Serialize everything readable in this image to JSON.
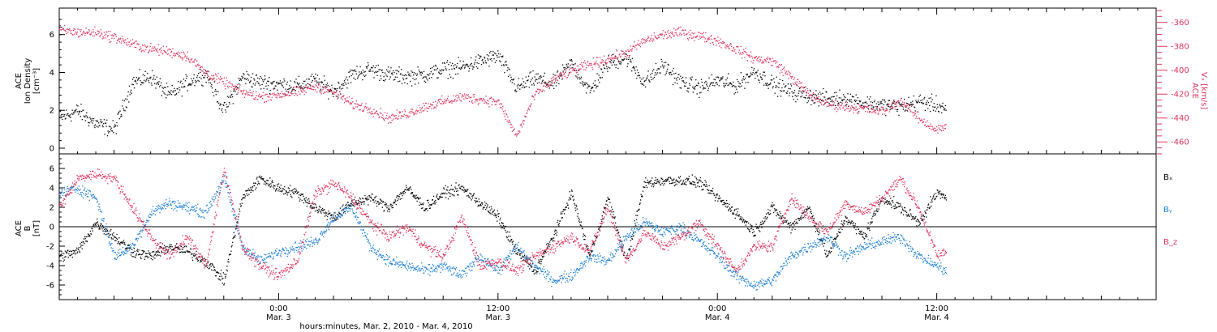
{
  "colors": {
    "black": "#000000",
    "red": "#e0355f",
    "blue": "#1f7fd4"
  },
  "xaxis": {
    "title": "hours:minutes, Mar. 2, 2010 - Mar. 4, 2010",
    "range_hours": [
      0,
      60
    ],
    "ticks": [
      {
        "hour": 12,
        "time": "0:00",
        "date": "Mar. 3"
      },
      {
        "hour": 24,
        "time": "12:00",
        "date": "Mar. 3"
      },
      {
        "hour": 36,
        "time": "0:00",
        "date": "Mar. 4"
      },
      {
        "hour": 48,
        "time": "12:00",
        "date": "Mar. 4"
      }
    ]
  },
  "chart_data": [
    {
      "type": "scatter",
      "panel": "top",
      "ylabel_left": {
        "line1": "ACE",
        "line2": "Ion Density",
        "line3": "[cm⁻³]"
      },
      "ylabel_right": {
        "line1": "ACE",
        "line2": "Vₓ [km/s]"
      },
      "ylim_left": [
        -0.3,
        7.4
      ],
      "yticks_left": [
        "0",
        "2",
        "4",
        "6"
      ],
      "ylim_right": [
        -470,
        -348
      ],
      "yticks_right": [
        "-360",
        "-380",
        "-400",
        "-420",
        "-440",
        "-460"
      ],
      "series": [
        {
          "axis": "left",
          "color": "black",
          "x": [
            0,
            1,
            2,
            3,
            4,
            5,
            6,
            7,
            8,
            9,
            10,
            11,
            12,
            13,
            14,
            15,
            16,
            17,
            18,
            19,
            20,
            21,
            22,
            23,
            24,
            25,
            26,
            27,
            28,
            29,
            30,
            31,
            32,
            33,
            34,
            35,
            36,
            37,
            38,
            39,
            40,
            41,
            42,
            43,
            44,
            45,
            46,
            47,
            48,
            48.5
          ],
          "y": [
            1.6,
            2.0,
            1.3,
            1.0,
            3.5,
            3.8,
            2.8,
            3.5,
            4.0,
            2.0,
            3.8,
            3.5,
            3.4,
            3.3,
            3.6,
            3.0,
            3.9,
            4.2,
            3.9,
            3.8,
            3.9,
            4.2,
            4.3,
            4.6,
            4.9,
            3.2,
            3.7,
            3.4,
            4.5,
            3.0,
            4.5,
            4.8,
            3.5,
            4.4,
            3.5,
            3.2,
            3.6,
            3.3,
            4.1,
            3.4,
            3.0,
            2.8,
            2.6,
            2.7,
            2.4,
            2.3,
            2.2,
            2.5,
            2.3,
            2.1
          ]
        },
        {
          "axis": "right",
          "color": "red",
          "x": [
            0,
            1,
            2,
            3,
            4,
            5,
            6,
            7,
            8,
            9,
            10,
            11,
            12,
            13,
            14,
            15,
            16,
            17,
            18,
            19,
            20,
            21,
            22,
            23,
            24,
            25,
            26,
            27,
            28,
            29,
            30,
            31,
            32,
            33,
            34,
            35,
            36,
            37,
            38,
            39,
            40,
            41,
            42,
            43,
            44,
            45,
            46,
            47,
            48,
            48.5
          ],
          "y": [
            -366,
            -368,
            -368,
            -372,
            -378,
            -382,
            -384,
            -388,
            -402,
            -410,
            -418,
            -422,
            -420,
            -418,
            -413,
            -418,
            -428,
            -432,
            -440,
            -436,
            -430,
            -426,
            -422,
            -424,
            -426,
            -455,
            -420,
            -408,
            -400,
            -395,
            -390,
            -385,
            -375,
            -370,
            -368,
            -371,
            -375,
            -382,
            -390,
            -392,
            -405,
            -420,
            -428,
            -430,
            -432,
            -434,
            -425,
            -440,
            -450,
            -446
          ]
        }
      ]
    },
    {
      "type": "scatter",
      "panel": "bottom",
      "ylabel_left": {
        "line1": "ACE",
        "line2": "B",
        "line3": "[nT]"
      },
      "ylim": [
        -7.5,
        7.5
      ],
      "yticks": [
        "-6",
        "-4",
        "-2",
        "0",
        "2",
        "4",
        "6"
      ],
      "legend": [
        {
          "text": "Bₓ",
          "color": "black"
        },
        {
          "text": "Bᵧ",
          "color": "blue"
        },
        {
          "text": "B_z",
          "color": "red"
        }
      ],
      "series": [
        {
          "name": "Bₓ",
          "color": "black",
          "x": [
            0,
            1,
            2,
            3,
            4,
            5,
            6,
            7,
            8,
            9,
            10,
            11,
            12,
            13,
            14,
            15,
            16,
            17,
            18,
            19,
            20,
            21,
            22,
            23,
            24,
            25,
            26,
            27,
            28,
            29,
            30,
            31,
            32,
            33,
            34,
            35,
            36,
            37,
            38,
            39,
            40,
            41,
            42,
            43,
            44,
            45,
            46,
            47,
            48,
            48.5
          ],
          "y": [
            -3.0,
            -2.5,
            0.5,
            -1.0,
            -2.5,
            -3.0,
            -2.0,
            -2.5,
            -3.5,
            -5.5,
            3.0,
            5.0,
            4.0,
            3.5,
            2.0,
            1.0,
            2.5,
            3.0,
            2.0,
            4.0,
            2.0,
            3.5,
            4.0,
            2.5,
            1.0,
            -2.5,
            -4.5,
            -1.0,
            3.5,
            -3.0,
            3.0,
            -3.5,
            4.5,
            4.8,
            4.8,
            4.6,
            3.0,
            1.5,
            -0.5,
            2.0,
            0.0,
            2.0,
            -3.0,
            1.0,
            -1.0,
            3.0,
            2.0,
            0.5,
            3.5,
            3.0
          ]
        },
        {
          "name": "Bᵧ",
          "color": "blue",
          "x": [
            0,
            1,
            2,
            3,
            4,
            5,
            6,
            7,
            8,
            9,
            10,
            11,
            12,
            13,
            14,
            15,
            16,
            17,
            18,
            19,
            20,
            21,
            22,
            23,
            24,
            25,
            26,
            27,
            28,
            29,
            30,
            31,
            32,
            33,
            34,
            35,
            36,
            37,
            38,
            39,
            40,
            41,
            42,
            43,
            44,
            45,
            46,
            47,
            48,
            48.5
          ],
          "y": [
            3.5,
            4.0,
            3.0,
            -3.0,
            -2.0,
            1.5,
            2.5,
            2.0,
            1.5,
            5.0,
            -2.0,
            -3.5,
            -2.5,
            -2.0,
            -1.5,
            1.0,
            2.0,
            -2.0,
            -3.5,
            -4.0,
            -4.5,
            -4.0,
            -5.0,
            -3.0,
            -4.5,
            -2.0,
            -4.0,
            -5.5,
            -5.0,
            -3.0,
            -3.5,
            -1.0,
            0.5,
            -0.5,
            0.0,
            -1.5,
            -3.0,
            -5.0,
            -6.0,
            -5.5,
            -3.0,
            -2.0,
            -1.0,
            -3.0,
            -2.0,
            -1.5,
            -1.0,
            -3.0,
            -4.0,
            -4.5
          ]
        },
        {
          "name": "B_z",
          "color": "red",
          "x": [
            0,
            1,
            2,
            3,
            4,
            5,
            6,
            7,
            8,
            9,
            10,
            11,
            12,
            13,
            14,
            15,
            16,
            17,
            18,
            19,
            20,
            21,
            22,
            23,
            24,
            25,
            26,
            27,
            28,
            29,
            30,
            31,
            32,
            33,
            34,
            35,
            36,
            37,
            38,
            39,
            40,
            41,
            42,
            43,
            44,
            45,
            46,
            47,
            48,
            48.5
          ],
          "y": [
            2.0,
            5.0,
            5.5,
            5.0,
            2.0,
            -1.0,
            -3.0,
            -1.0,
            -4.0,
            6.0,
            -2.0,
            -4.0,
            -5.0,
            -3.5,
            3.5,
            4.5,
            3.0,
            0.5,
            -1.0,
            0.0,
            -2.0,
            -3.0,
            1.0,
            -4.0,
            -3.5,
            -4.5,
            -3.0,
            -2.0,
            -1.0,
            -2.5,
            2.0,
            -3.5,
            -0.5,
            -2.0,
            -1.0,
            0.5,
            -2.0,
            -4.5,
            -2.0,
            -2.0,
            3.0,
            1.0,
            -0.5,
            2.5,
            1.5,
            3.0,
            5.0,
            2.0,
            -3.0,
            -2.5
          ]
        }
      ]
    }
  ]
}
